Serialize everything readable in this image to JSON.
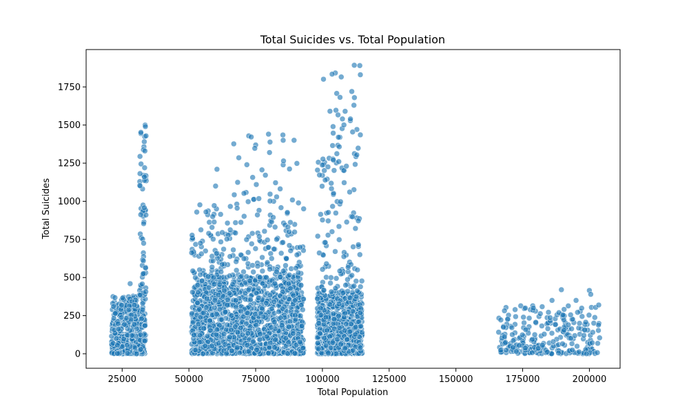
{
  "chart_data": {
    "type": "scatter",
    "title": "Total Suicides vs. Total Population",
    "xlabel": "Total Population",
    "ylabel": "Total Suicides",
    "xlim": [
      11500,
      211500
    ],
    "ylim": [
      -95,
      1995
    ],
    "xticks": [
      25000,
      50000,
      75000,
      100000,
      125000,
      150000,
      175000,
      200000
    ],
    "yticks": [
      0,
      250,
      500,
      750,
      1000,
      1250,
      1500,
      1750
    ],
    "grid": false,
    "legend": "none",
    "point_color": "#1f77b4",
    "clusters": [
      {
        "x_range": [
          21000,
          33800
        ],
        "y_range": [
          0,
          380
        ],
        "count": 420
      },
      {
        "x_range": [
          31500,
          34000
        ],
        "y_range": [
          380,
          1500
        ],
        "count": 60
      },
      {
        "x_range": [
          51000,
          93000
        ],
        "y_range": [
          0,
          500
        ],
        "count": 1500
      },
      {
        "x_range": [
          51000,
          93000
        ],
        "y_range": [
          500,
          1000
        ],
        "count": 220
      },
      {
        "x_range": [
          66000,
          92000
        ],
        "y_range": [
          1000,
          1440
        ],
        "count": 30
      },
      {
        "x_range": [
          98000,
          115000
        ],
        "y_range": [
          0,
          400
        ],
        "count": 800
      },
      {
        "x_range": [
          98000,
          115000
        ],
        "y_range": [
          400,
          1300
        ],
        "count": 120
      },
      {
        "x_range": [
          100000,
          114500
        ],
        "y_range": [
          1300,
          1900
        ],
        "count": 25
      },
      {
        "x_range": [
          166000,
          204000
        ],
        "y_range": [
          0,
          320
        ],
        "count": 260
      }
    ],
    "points": [
      {
        "x": 33600,
        "y": 1500
      },
      {
        "x": 33700,
        "y": 1490
      },
      {
        "x": 33500,
        "y": 1330
      },
      {
        "x": 33400,
        "y": 1220
      },
      {
        "x": 33300,
        "y": 1160
      },
      {
        "x": 28000,
        "y": 460
      },
      {
        "x": 60500,
        "y": 1210
      },
      {
        "x": 60000,
        "y": 1100
      },
      {
        "x": 71700,
        "y": 1240
      },
      {
        "x": 79800,
        "y": 1440
      },
      {
        "x": 85200,
        "y": 1435
      },
      {
        "x": 85300,
        "y": 1400
      },
      {
        "x": 104000,
        "y": 1490
      },
      {
        "x": 106000,
        "y": 1420
      },
      {
        "x": 107500,
        "y": 1540
      },
      {
        "x": 108500,
        "y": 1590
      },
      {
        "x": 111000,
        "y": 1720
      },
      {
        "x": 112000,
        "y": 1680
      },
      {
        "x": 111800,
        "y": 1630
      },
      {
        "x": 114000,
        "y": 1890
      },
      {
        "x": 114200,
        "y": 1830
      },
      {
        "x": 110500,
        "y": 1540
      },
      {
        "x": 189500,
        "y": 420
      },
      {
        "x": 200000,
        "y": 415
      },
      {
        "x": 195000,
        "y": 350
      },
      {
        "x": 186000,
        "y": 350
      },
      {
        "x": 203500,
        "y": 320
      },
      {
        "x": 176000,
        "y": 300
      },
      {
        "x": 179000,
        "y": 300
      },
      {
        "x": 200500,
        "y": 390
      }
    ]
  }
}
